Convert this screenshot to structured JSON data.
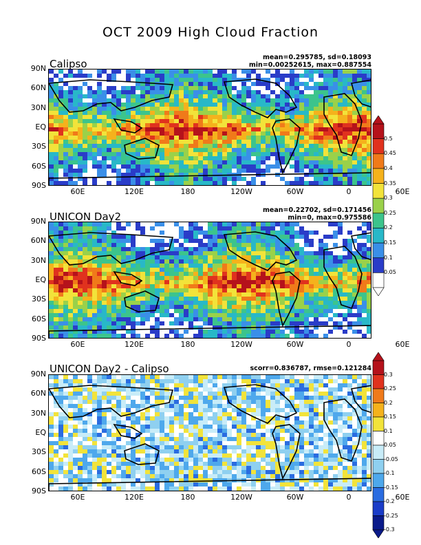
{
  "title": "OCT 2009 High Cloud Fraction",
  "panels": [
    {
      "name": "Calipso",
      "stats_line1": "mean=0.295785, sd=0.18093",
      "stats_line2": "min=0.00252615, max=0.887554"
    },
    {
      "name": "UNICON Day2",
      "stats_line1": "mean=0.22702, sd=0.171456",
      "stats_line2": "min=0, max=0.975586"
    },
    {
      "name": "UNICON Day2 - Calipso",
      "stats_line1": "scorr=0.836787, rmse=0.121284",
      "stats_line2": ""
    }
  ],
  "lat_ticks": [
    "90N",
    "60N",
    "30N",
    "EQ",
    "30S",
    "60S",
    "90S"
  ],
  "lon_ticks": [
    "60E",
    "120E",
    "180",
    "120W",
    "60W",
    "0",
    "60E"
  ],
  "colorbar1": {
    "labels": [
      "0.5",
      "0.45",
      "0.4",
      "0.35",
      "0.3",
      "0.25",
      "0.2",
      "0.15",
      "0.1",
      "0.05"
    ],
    "colors": [
      "#b5121b",
      "#e0321e",
      "#f07a1a",
      "#f5b21c",
      "#f2e33a",
      "#9ad14a",
      "#3cc48c",
      "#28b8c8",
      "#3a8fe8",
      "#2a3cc8",
      "#ffffff"
    ]
  },
  "colorbar2": {
    "labels": [
      "0.3",
      "0.25",
      "0.2",
      "0.15",
      "0.1",
      "0.05",
      "-0.05",
      "-0.1",
      "-0.15",
      "-0.2",
      "-0.25",
      "-0.3"
    ],
    "colors": [
      "#b5121b",
      "#e0321e",
      "#f07a1a",
      "#f5b21c",
      "#f2e33a",
      "#ffffff",
      "#c8ecf8",
      "#8fd0f0",
      "#4ea8ec",
      "#2a6ce0",
      "#1a3cc8",
      "#0a1a8a"
    ]
  }
}
